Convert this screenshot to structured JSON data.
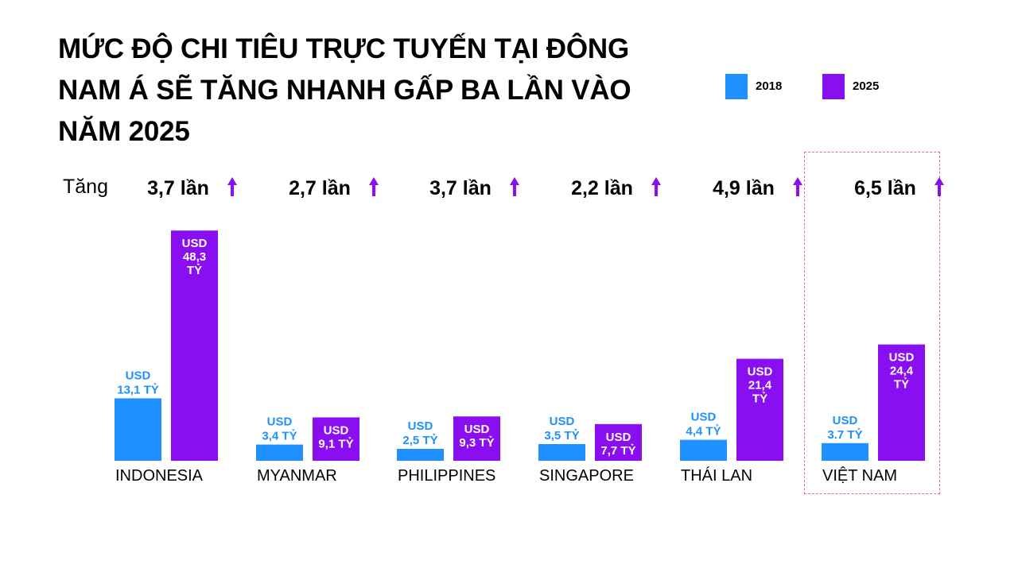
{
  "title": "MỨC ĐỘ CHI TIÊU TRỰC TUYẾN TẠI ĐÔNG NAM Á SẼ TĂNG NHANH GẤP BA LẦN VÀO NĂM 2025",
  "growth_prefix": "Tăng",
  "colors": {
    "series_2018": "#1e90ff",
    "series_2025": "#8a0ff0",
    "arrow": "#8a0ff0",
    "highlight_border": "#e066b3"
  },
  "chart_data": {
    "type": "bar",
    "title": "MỨC ĐỘ CHI TIÊU TRỰC TUYẾN TẠI ĐÔNG NAM Á SẼ TĂNG NHANH GẤP BA LẦN VÀO NĂM 2025",
    "xlabel": "",
    "ylabel": "",
    "unit": "USD tỷ",
    "legend_position": "top-right",
    "grid": false,
    "categories": [
      "INDONESIA",
      "MYANMAR",
      "PHILIPPINES",
      "SINGAPORE",
      "THÁI LAN",
      "VIỆT NAM"
    ],
    "series": [
      {
        "name": "2018",
        "values": [
          13.1,
          3.4,
          2.5,
          3.5,
          4.4,
          3.7
        ],
        "labels": [
          "USD 13,1 TỶ",
          "USD 3,4 TỶ",
          "USD 2,5 TỶ",
          "USD 3,5 TỶ",
          "USD 4,4 TỶ",
          "USD 3.7 TỶ"
        ]
      },
      {
        "name": "2025",
        "values": [
          48.3,
          9.1,
          9.3,
          7.7,
          21.4,
          24.4
        ],
        "labels": [
          "USD 48,3 TỶ",
          "USD 9,1 TỶ",
          "USD 9,3 TỶ",
          "USD 7,7 TỶ",
          "USD 21,4 TỶ",
          "USD 24,4 TỶ"
        ]
      }
    ],
    "growth_labels": [
      "3,7 lần",
      "2,7 lần",
      "3,7 lần",
      "2,2 lần",
      "4,9 lần",
      "6,5 lần"
    ],
    "highlighted_category": "VIỆT NAM"
  }
}
